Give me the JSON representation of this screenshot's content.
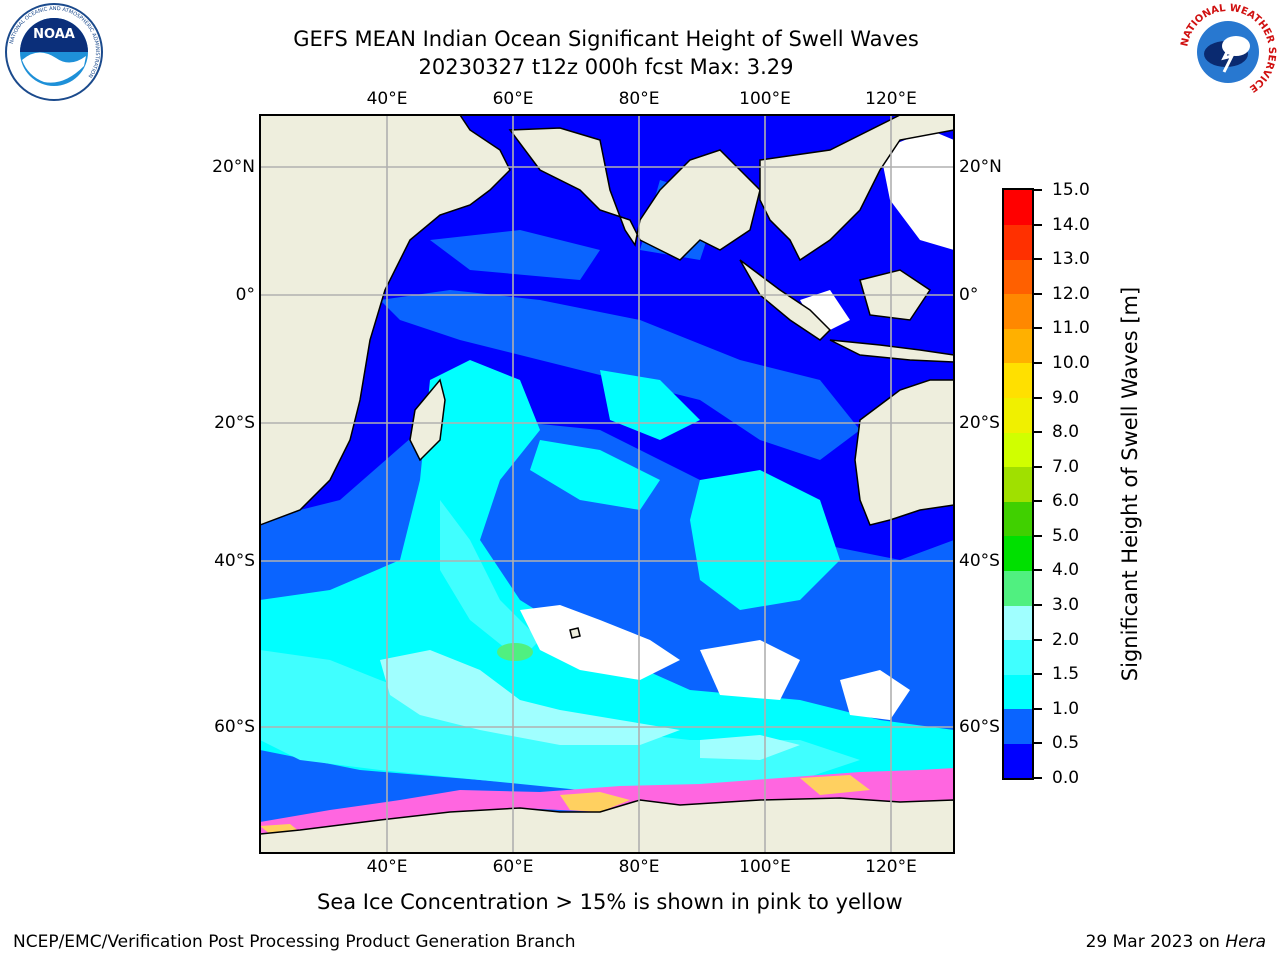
{
  "title_line1": "GEFS MEAN Indian Ocean Significant Height of Swell Waves",
  "title_line2": "20230327 t12z 000h fcst   Max: 3.29",
  "longitude_ticks": [
    "40°E",
    "60°E",
    "80°E",
    "100°E",
    "120°E"
  ],
  "latitude_ticks": [
    "20°N",
    "0°",
    "20°S",
    "40°S",
    "60°S"
  ],
  "colorbar": {
    "title": "Significant Height of Swell Waves [m]",
    "levels": [
      "0.0",
      "0.5",
      "1.0",
      "1.5",
      "2.0",
      "3.0",
      "4.0",
      "5.0",
      "6.0",
      "7.0",
      "8.0",
      "9.0",
      "10.0",
      "11.0",
      "12.0",
      "13.0",
      "14.0",
      "15.0"
    ],
    "colors": [
      "#0000ff",
      "#0a64ff",
      "#00ffff",
      "#40ffff",
      "#a0ffff",
      "#50f080",
      "#00e000",
      "#40d000",
      "#a0e000",
      "#d0ff00",
      "#f0f000",
      "#ffe000",
      "#ffb000",
      "#ff8800",
      "#ff6000",
      "#ff3000",
      "#ff0000"
    ]
  },
  "map_colors": {
    "land": "#eeeedd",
    "grid": "#b0b0b0",
    "ice_pink": "#ff66e0",
    "ice_yellow": "#ffd060"
  },
  "footnote": "Sea Ice Concentration > 15% is shown in pink to yellow",
  "credit_left": "NCEP/EMC/Verification Post Processing Product Generation Branch",
  "credit_right_date": "29 Mar 2023 on",
  "credit_right_machine": "Hera",
  "logos": {
    "noaa_text": "NOAA",
    "noaa_ring_text": "NATIONAL OCEANIC AND ATMOSPHERIC ADMINISTRATION",
    "nws_ring_text": "NATIONAL WEATHER SERVICE"
  }
}
